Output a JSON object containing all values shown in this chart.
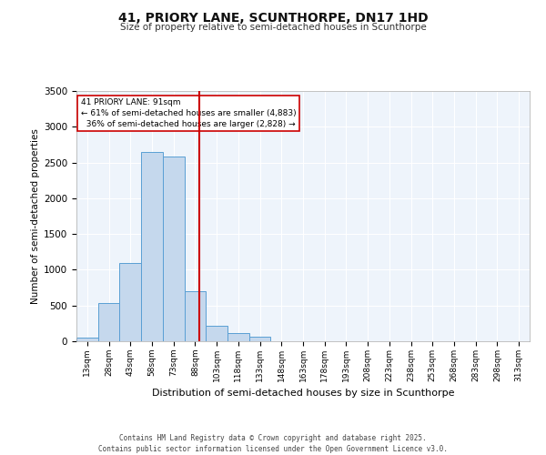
{
  "title": "41, PRIORY LANE, SCUNTHORPE, DN17 1HD",
  "subtitle": "Size of property relative to semi-detached houses in Scunthorpe",
  "xlabel": "Distribution of semi-detached houses by size in Scunthorpe",
  "ylabel": "Number of semi-detached properties",
  "bin_labels": [
    "13sqm",
    "28sqm",
    "43sqm",
    "58sqm",
    "73sqm",
    "88sqm",
    "103sqm",
    "118sqm",
    "133sqm",
    "148sqm",
    "163sqm",
    "178sqm",
    "193sqm",
    "208sqm",
    "223sqm",
    "238sqm",
    "253sqm",
    "268sqm",
    "283sqm",
    "298sqm",
    "313sqm"
  ],
  "bar_values": [
    55,
    540,
    1090,
    2650,
    2580,
    700,
    220,
    110,
    65,
    0,
    0,
    0,
    0,
    0,
    0,
    0,
    0,
    0,
    0,
    0,
    0
  ],
  "bar_color": "#c5d8ed",
  "bar_edge_color": "#5a9fd4",
  "property_size": 91,
  "property_label": "41 PRIORY LANE: 91sqm",
  "smaller_pct": "61% of semi-detached houses are smaller (4,883)",
  "larger_pct": "36% of semi-detached houses are larger (2,828)",
  "vline_color": "#cc0000",
  "annotation_box_color": "#cc0000",
  "ylim": [
    0,
    3500
  ],
  "yticks": [
    0,
    500,
    1000,
    1500,
    2000,
    2500,
    3000,
    3500
  ],
  "footer_line1": "Contains HM Land Registry data © Crown copyright and database right 2025.",
  "footer_line2": "Contains public sector information licensed under the Open Government Licence v3.0.",
  "bg_color": "#eef4fb",
  "plot_bg_color": "#eef4fb"
}
